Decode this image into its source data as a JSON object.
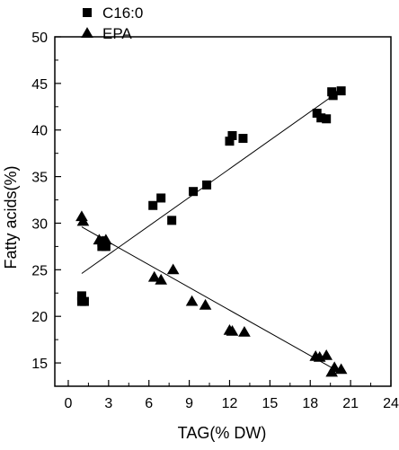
{
  "chart_data": {
    "type": "scatter",
    "title": "",
    "xlabel": "TAG(% DW)",
    "ylabel": "Fatty acids(%)",
    "xlim": [
      -1,
      24
    ],
    "ylim": [
      12.5,
      50
    ],
    "xticks": [
      0,
      3,
      6,
      9,
      12,
      15,
      18,
      21,
      24
    ],
    "yticks": [
      15,
      20,
      25,
      30,
      35,
      40,
      45,
      50
    ],
    "xtick_labels": [
      "0",
      "3",
      "6",
      "9",
      "12",
      "15",
      "18",
      "21",
      "24"
    ],
    "ytick_labels": [
      "15",
      "20",
      "25",
      "30",
      "35",
      "40",
      "45",
      "50"
    ],
    "grid": false,
    "legend_position": "top-left, outside plot",
    "series": [
      {
        "name": "C16:0",
        "marker": "square",
        "color": "#000000",
        "points": [
          {
            "x": 1.0,
            "y": 22.2
          },
          {
            "x": 1.0,
            "y": 21.6
          },
          {
            "x": 1.2,
            "y": 21.6
          },
          {
            "x": 2.5,
            "y": 28.1
          },
          {
            "x": 2.5,
            "y": 27.5
          },
          {
            "x": 2.8,
            "y": 27.5
          },
          {
            "x": 6.3,
            "y": 31.9
          },
          {
            "x": 6.9,
            "y": 32.7
          },
          {
            "x": 7.7,
            "y": 30.3
          },
          {
            "x": 9.3,
            "y": 33.4
          },
          {
            "x": 10.3,
            "y": 34.1
          },
          {
            "x": 12.0,
            "y": 38.8
          },
          {
            "x": 12.2,
            "y": 39.4
          },
          {
            "x": 13.0,
            "y": 39.1
          },
          {
            "x": 18.5,
            "y": 41.8
          },
          {
            "x": 18.8,
            "y": 41.3
          },
          {
            "x": 19.2,
            "y": 41.2
          },
          {
            "x": 19.6,
            "y": 44.1
          },
          {
            "x": 19.7,
            "y": 43.7
          },
          {
            "x": 20.3,
            "y": 44.2
          }
        ],
        "fit_line": {
          "x": [
            1.0,
            20.0
          ],
          "y": [
            24.6,
            44.0
          ]
        }
      },
      {
        "name": "EPA",
        "marker": "triangle",
        "color": "#000000",
        "points": [
          {
            "x": 1.0,
            "y": 30.7
          },
          {
            "x": 1.1,
            "y": 30.2
          },
          {
            "x": 2.3,
            "y": 28.2
          },
          {
            "x": 2.6,
            "y": 28.0
          },
          {
            "x": 2.8,
            "y": 28.2
          },
          {
            "x": 6.4,
            "y": 24.2
          },
          {
            "x": 6.9,
            "y": 23.9
          },
          {
            "x": 7.8,
            "y": 25.0
          },
          {
            "x": 9.2,
            "y": 21.6
          },
          {
            "x": 10.2,
            "y": 21.2
          },
          {
            "x": 12.0,
            "y": 18.5
          },
          {
            "x": 12.2,
            "y": 18.4
          },
          {
            "x": 13.1,
            "y": 18.3
          },
          {
            "x": 18.4,
            "y": 15.7
          },
          {
            "x": 18.7,
            "y": 15.6
          },
          {
            "x": 19.2,
            "y": 15.8
          },
          {
            "x": 19.6,
            "y": 14.0
          },
          {
            "x": 19.8,
            "y": 14.5
          },
          {
            "x": 20.3,
            "y": 14.3
          }
        ],
        "fit_line": {
          "x": [
            1.0,
            20.2
          ],
          "y": [
            29.6,
            14.0
          ]
        }
      }
    ]
  }
}
